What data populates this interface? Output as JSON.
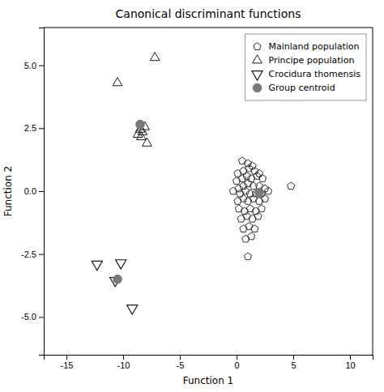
{
  "chart_data": {
    "type": "scatter",
    "title": "Canonical discriminant functions",
    "xlabel": "Function 1",
    "ylabel": "Function 2",
    "xlim": [
      -17,
      12
    ],
    "ylim": [
      -6.5,
      6.5
    ],
    "xticks": [
      -15,
      -10,
      -5,
      0,
      5,
      10
    ],
    "yticks": [
      {
        "value": -5.0,
        "label": "-5.0"
      },
      {
        "value": -2.5,
        "label": "-2.5"
      },
      {
        "value": 0.0,
        "label": "0.0"
      },
      {
        "value": 2.5,
        "label": "2.5"
      },
      {
        "value": 5.0,
        "label": "5.0"
      }
    ],
    "grid": false,
    "legend": "upper-right",
    "series": [
      {
        "name": "Mainland population",
        "color": "#1a1a1a",
        "marker": "pentagon-open",
        "x": [
          0.5,
          1.0,
          1.4,
          0.1,
          0.6,
          1.1,
          1.6,
          2.0,
          0.0,
          0.5,
          0.9,
          1.3,
          1.8,
          2.3,
          0.2,
          0.6,
          1.0,
          1.5,
          2.0,
          2.5,
          -0.3,
          0.3,
          0.8,
          1.2,
          1.7,
          2.2,
          2.8,
          0.1,
          0.6,
          1.0,
          1.5,
          2.0,
          2.5,
          0.2,
          0.7,
          1.2,
          1.7,
          2.2,
          0.4,
          0.9,
          1.4,
          1.9,
          0.6,
          1.1,
          1.6,
          0.8,
          1.3,
          4.8,
          1.0
        ],
        "values": [
          1.2,
          1.1,
          1.0,
          0.7,
          0.8,
          0.9,
          0.8,
          0.7,
          0.4,
          0.5,
          0.6,
          0.5,
          0.6,
          0.5,
          0.1,
          0.2,
          0.3,
          0.2,
          0.2,
          0.1,
          0.0,
          -0.1,
          0.0,
          -0.1,
          -0.1,
          -0.1,
          0.0,
          -0.4,
          -0.3,
          -0.4,
          -0.3,
          -0.4,
          -0.3,
          -0.7,
          -0.8,
          -0.7,
          -0.8,
          -0.7,
          -1.1,
          -1.0,
          -1.1,
          -1.0,
          -1.5,
          -1.4,
          -1.5,
          -1.9,
          -1.8,
          0.2,
          -2.6
        ]
      },
      {
        "name": "Principe population",
        "color": "#1a1a1a",
        "marker": "triangle-up-open",
        "x": [
          -7.2,
          -10.5,
          -8.1,
          -8.5,
          -8.3,
          -8.7,
          -8.4,
          -7.9
        ],
        "values": [
          5.3,
          4.3,
          2.55,
          2.45,
          2.35,
          2.25,
          2.15,
          1.9
        ]
      },
      {
        "name": "Crocidura thomensis",
        "color": "#1a1a1a",
        "marker": "triangle-down-open",
        "x": [
          -12.3,
          -10.2,
          -10.7,
          -9.2
        ],
        "values": [
          -2.9,
          -2.85,
          -3.55,
          -4.65
        ]
      },
      {
        "name": "Group centroid",
        "color": "#7a7a7a",
        "marker": "circle",
        "x": [
          2.0,
          -8.5,
          -10.5
        ],
        "values": [
          -0.05,
          2.65,
          -3.5
        ]
      }
    ]
  }
}
